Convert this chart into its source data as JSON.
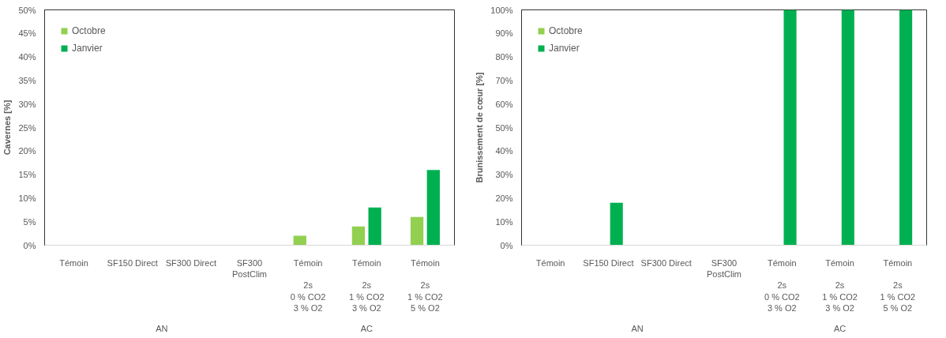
{
  "chart_data": [
    {
      "type": "bar",
      "ylabel": "Cavernes [%]",
      "categories": [
        "Témoin",
        "SF150 Direct",
        "SF300 Direct",
        "SF300\nPostClim",
        "Témoin\n\n2s\n0 % CO2\n3 % O2",
        "Témoin\n\n2s\n1 % CO2\n3 % O2",
        "Témoin\n\n2s\n1 % CO2\n5 % O2"
      ],
      "series": [
        {
          "name": "Octobre",
          "color": "#92d050",
          "values": [
            0,
            0,
            0,
            0,
            2,
            4,
            6
          ]
        },
        {
          "name": "Janvier",
          "color": "#00b050",
          "values": [
            0,
            0,
            0,
            0,
            0,
            8,
            16
          ]
        }
      ],
      "ylim": [
        0,
        50
      ],
      "yticks": [
        {
          "value": 0,
          "label": "0%"
        },
        {
          "value": 5,
          "label": "5%"
        },
        {
          "value": 10,
          "label": "10%"
        },
        {
          "value": 15,
          "label": "15%"
        },
        {
          "value": 20,
          "label": "20%"
        },
        {
          "value": 25,
          "label": "25%"
        },
        {
          "value": 30,
          "label": "30%"
        },
        {
          "value": 35,
          "label": "35%"
        },
        {
          "value": 40,
          "label": "40%"
        },
        {
          "value": 45,
          "label": "45%"
        },
        {
          "value": 50,
          "label": "50%"
        }
      ],
      "annotations": [
        "AN",
        "AC"
      ],
      "grid": false,
      "legend": "top left"
    },
    {
      "type": "bar",
      "ylabel": "Brunissement de cœur [%]",
      "categories": [
        "Témoin",
        "SF150 Direct",
        "SF300 Direct",
        "SF300\nPostClim",
        "Témoin\n\n2s\n0 % CO2\n3 % O2",
        "Témoin\n\n2s\n1 % CO2\n3 % O2",
        "Témoin\n\n2s\n1 % CO2\n5 % O2"
      ],
      "series": [
        {
          "name": "Octobre",
          "color": "#92d050",
          "values": [
            0,
            0,
            0,
            0,
            0,
            0,
            0
          ]
        },
        {
          "name": "Janvier",
          "color": "#00b050",
          "values": [
            0,
            18,
            0,
            0,
            100,
            100,
            100
          ]
        }
      ],
      "ylim": [
        0,
        100
      ],
      "yticks": [
        {
          "value": 0,
          "label": "0%"
        },
        {
          "value": 10,
          "label": "10%"
        },
        {
          "value": 20,
          "label": "20%"
        },
        {
          "value": 30,
          "label": "30%"
        },
        {
          "value": 40,
          "label": "40%"
        },
        {
          "value": 50,
          "label": "50%"
        },
        {
          "value": 60,
          "label": "60%"
        },
        {
          "value": 70,
          "label": "70%"
        },
        {
          "value": 80,
          "label": "80%"
        },
        {
          "value": 90,
          "label": "90%"
        },
        {
          "value": 100,
          "label": "100%"
        }
      ],
      "annotations": [
        "AN",
        "AC"
      ],
      "grid": false,
      "legend": "top left"
    }
  ]
}
